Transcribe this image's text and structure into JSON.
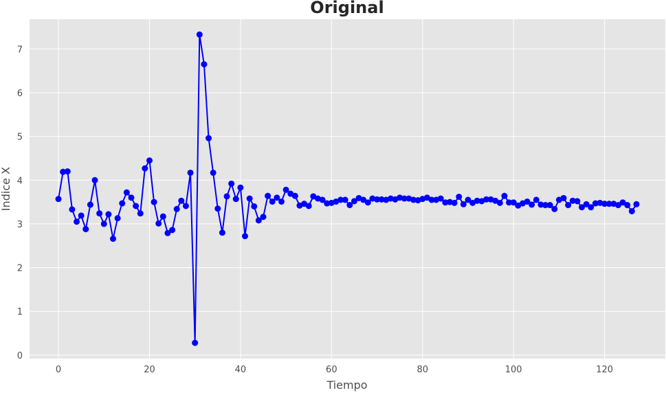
{
  "chart_data": {
    "type": "line",
    "title": "Original",
    "xlabel": "Tiempo",
    "ylabel": "Indice X",
    "xlim": [
      -6.35,
      133.35
    ],
    "ylim": [
      -0.08,
      7.68
    ],
    "xticks": [
      0,
      20,
      40,
      60,
      80,
      100,
      120
    ],
    "yticks": [
      0,
      1,
      2,
      3,
      4,
      5,
      6,
      7
    ],
    "grid": true,
    "legend": "none",
    "background_color": "#e5e5e5",
    "grid_color": "#ffffff",
    "series": [
      {
        "color": "#0000ff",
        "marker": "circle",
        "x": [
          0,
          1,
          2,
          3,
          4,
          5,
          6,
          7,
          8,
          9,
          10,
          11,
          12,
          13,
          14,
          15,
          16,
          17,
          18,
          19,
          20,
          21,
          22,
          23,
          24,
          25,
          26,
          27,
          28,
          29,
          30,
          31,
          32,
          33,
          34,
          35,
          36,
          37,
          38,
          39,
          40,
          41,
          42,
          43,
          44,
          45,
          46,
          47,
          48,
          49,
          50,
          51,
          52,
          53,
          54,
          55,
          56,
          57,
          58,
          59,
          60,
          61,
          62,
          63,
          64,
          65,
          66,
          67,
          68,
          69,
          70,
          71,
          72,
          73,
          74,
          75,
          76,
          77,
          78,
          79,
          80,
          81,
          82,
          83,
          84,
          85,
          86,
          87,
          88,
          89,
          90,
          91,
          92,
          93,
          94,
          95,
          96,
          97,
          98,
          99,
          100,
          101,
          102,
          103,
          104,
          105,
          106,
          107,
          108,
          109,
          110,
          111,
          112,
          113,
          114,
          115,
          116,
          117,
          118,
          119,
          120,
          121,
          122,
          123,
          124,
          125,
          126,
          127
        ],
        "y": [
          3.57,
          4.19,
          4.2,
          3.33,
          3.05,
          3.19,
          2.88,
          3.44,
          4.0,
          3.24,
          3.0,
          3.22,
          2.66,
          3.13,
          3.47,
          3.72,
          3.6,
          3.41,
          3.24,
          4.27,
          4.45,
          3.5,
          3.01,
          3.17,
          2.79,
          2.86,
          3.34,
          3.53,
          3.41,
          4.17,
          0.28,
          7.33,
          6.65,
          4.96,
          4.17,
          3.35,
          2.8,
          3.63,
          3.92,
          3.57,
          3.83,
          2.72,
          3.58,
          3.4,
          3.08,
          3.16,
          3.64,
          3.51,
          3.6,
          3.51,
          3.78,
          3.69,
          3.64,
          3.42,
          3.46,
          3.41,
          3.63,
          3.58,
          3.55,
          3.47,
          3.48,
          3.51,
          3.55,
          3.55,
          3.43,
          3.52,
          3.59,
          3.55,
          3.49,
          3.58,
          3.56,
          3.56,
          3.55,
          3.58,
          3.56,
          3.6,
          3.58,
          3.58,
          3.55,
          3.54,
          3.57,
          3.6,
          3.55,
          3.55,
          3.58,
          3.49,
          3.5,
          3.48,
          3.62,
          3.45,
          3.55,
          3.48,
          3.53,
          3.52,
          3.56,
          3.56,
          3.53,
          3.48,
          3.64,
          3.49,
          3.49,
          3.42,
          3.47,
          3.51,
          3.44,
          3.55,
          3.44,
          3.43,
          3.43,
          3.34,
          3.55,
          3.59,
          3.43,
          3.53,
          3.52,
          3.38,
          3.45,
          3.38,
          3.47,
          3.48,
          3.46,
          3.46,
          3.46,
          3.43,
          3.49,
          3.43,
          3.29,
          3.45
        ]
      }
    ]
  }
}
